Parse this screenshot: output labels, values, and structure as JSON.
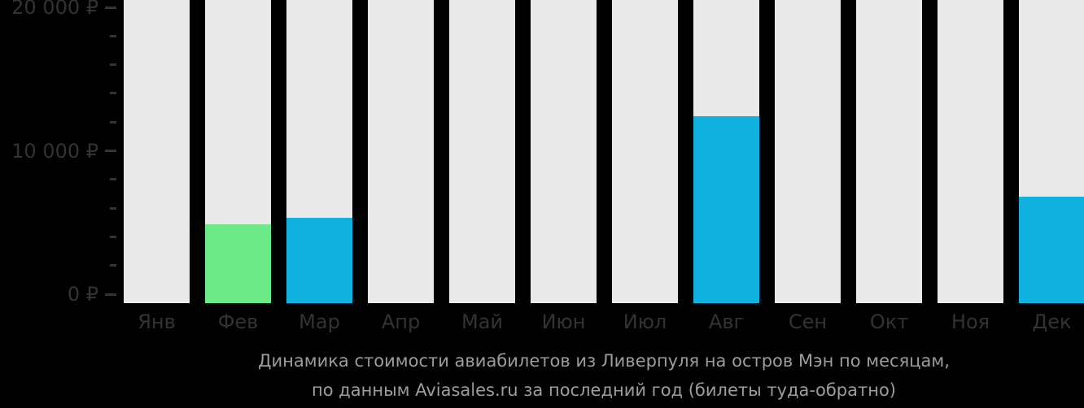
{
  "background_color": "#000000",
  "chart_data": {
    "type": "bar",
    "title": "Динамика стоимости авиабилетов из Ливерпуля на остров Мэн по месяцам,",
    "subtitle": "по данным Aviasales.ru за последний год (билеты туда-обратно)",
    "categories": [
      "Янв",
      "Фев",
      "Мар",
      "Апр",
      "Май",
      "Июн",
      "Июл",
      "Авг",
      "Сен",
      "Окт",
      "Ноя",
      "Дек"
    ],
    "values": [
      null,
      4900,
      5300,
      null,
      null,
      null,
      null,
      12400,
      null,
      null,
      null,
      6800
    ],
    "bar_colors": [
      null,
      "#6cea88",
      "#0fb2df",
      null,
      null,
      null,
      null,
      "#0fb2df",
      null,
      null,
      null,
      "#0fb2df"
    ],
    "xlabel": "",
    "ylabel": "",
    "ylim": [
      0,
      20000
    ],
    "ytick_step_minor": 2000,
    "yticks": [
      {
        "value": 0,
        "label": "0 ₽"
      },
      {
        "value": 10000,
        "label": "10 000 ₽"
      },
      {
        "value": 20000,
        "label": "20 000 ₽"
      }
    ],
    "currency": "₽",
    "grid": false,
    "legend_position": "none",
    "column_bg_color": "#e9e9e9",
    "axis_text_color": "#333333",
    "caption_text_color": "#9d9d9d"
  }
}
